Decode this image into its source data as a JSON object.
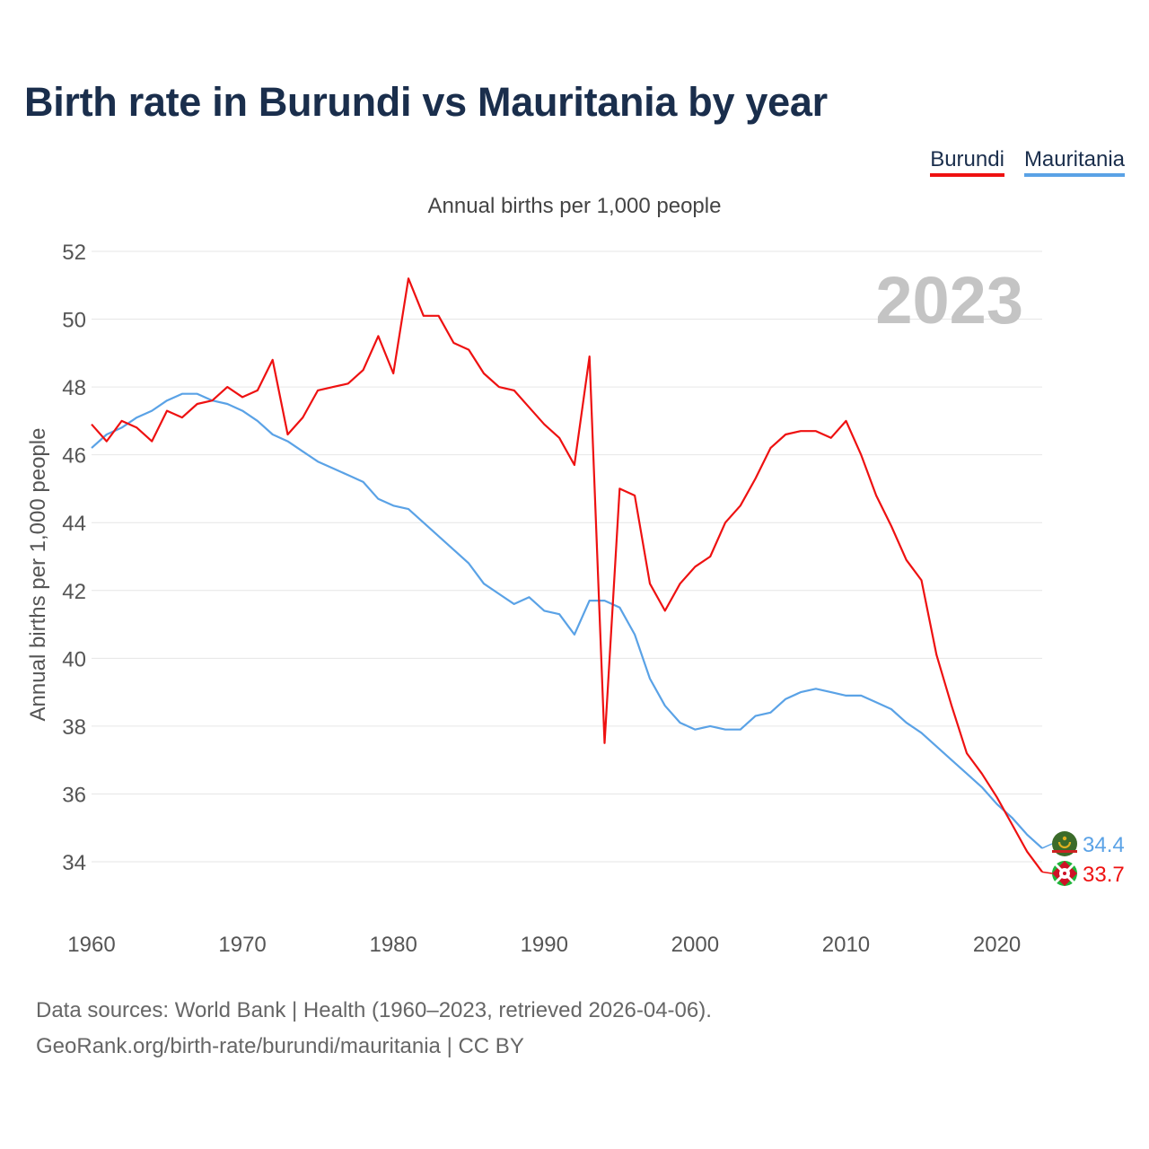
{
  "title": "Birth rate in Burundi vs Mauritania by year",
  "subtitle": "Annual births per 1,000 people",
  "year_badge": "2023",
  "footer": {
    "line1": "Data sources: World Bank | Health (1960–2023, retrieved 2026-04-06).",
    "line2": "GeoRank.org/birth-rate/burundi/mauritania | CC BY"
  },
  "colors": {
    "burundi": "#ee1111",
    "mauritania": "#5aa2e6",
    "grid": "#e6e6e6",
    "axis_text": "#555555",
    "badge": "#c4c4c4"
  },
  "chart_data": {
    "type": "line",
    "title": "Birth rate in Burundi vs Mauritania by year",
    "xlabel": "",
    "ylabel": "Annual births per 1,000 people",
    "xlim": [
      1960,
      2023
    ],
    "ylim": [
      32.5,
      52.5
    ],
    "x_ticks": [
      1960,
      1970,
      1980,
      1990,
      2000,
      2010,
      2020
    ],
    "y_ticks": [
      34,
      36,
      38,
      40,
      42,
      44,
      46,
      48,
      50,
      52
    ],
    "grid": true,
    "legend_position": "top-right",
    "x": [
      1960,
      1961,
      1962,
      1963,
      1964,
      1965,
      1966,
      1967,
      1968,
      1969,
      1970,
      1971,
      1972,
      1973,
      1974,
      1975,
      1976,
      1977,
      1978,
      1979,
      1980,
      1981,
      1982,
      1983,
      1984,
      1985,
      1986,
      1987,
      1988,
      1989,
      1990,
      1991,
      1992,
      1993,
      1994,
      1995,
      1996,
      1997,
      1998,
      1999,
      2000,
      2001,
      2002,
      2003,
      2004,
      2005,
      2006,
      2007,
      2008,
      2009,
      2010,
      2011,
      2012,
      2013,
      2014,
      2015,
      2016,
      2017,
      2018,
      2019,
      2020,
      2021,
      2022,
      2023
    ],
    "series": [
      {
        "name": "Burundi",
        "end_label": "33.7",
        "values": [
          46.9,
          46.4,
          47.0,
          46.8,
          46.4,
          47.3,
          47.1,
          47.5,
          47.6,
          48.0,
          47.7,
          47.9,
          48.8,
          46.6,
          47.1,
          47.9,
          48.0,
          48.1,
          48.5,
          49.5,
          48.4,
          51.2,
          50.1,
          50.1,
          49.3,
          49.1,
          48.4,
          48.0,
          47.9,
          47.4,
          46.9,
          46.5,
          45.7,
          48.9,
          37.5,
          45.0,
          44.8,
          42.2,
          41.4,
          42.2,
          42.7,
          43.0,
          44.0,
          44.5,
          45.3,
          46.2,
          46.6,
          46.7,
          46.7,
          46.5,
          47.0,
          46.0,
          44.8,
          43.9,
          42.9,
          42.3,
          40.1,
          38.6,
          37.2,
          36.6,
          35.9,
          35.1,
          34.3,
          33.7
        ]
      },
      {
        "name": "Mauritania",
        "end_label": "34.4",
        "values": [
          46.2,
          46.6,
          46.8,
          47.1,
          47.3,
          47.6,
          47.8,
          47.8,
          47.6,
          47.5,
          47.3,
          47.0,
          46.6,
          46.4,
          46.1,
          45.8,
          45.6,
          45.4,
          45.2,
          44.7,
          44.5,
          44.4,
          44.0,
          43.6,
          43.2,
          42.8,
          42.2,
          41.9,
          41.6,
          41.8,
          41.4,
          41.3,
          40.7,
          41.7,
          41.7,
          41.5,
          40.7,
          39.4,
          38.6,
          38.1,
          37.9,
          38.0,
          37.9,
          37.9,
          38.3,
          38.4,
          38.8,
          39.0,
          39.1,
          39.0,
          38.9,
          38.9,
          38.7,
          38.5,
          38.1,
          37.8,
          37.4,
          37.0,
          36.6,
          36.2,
          35.7,
          35.3,
          34.8,
          34.4
        ]
      }
    ]
  }
}
